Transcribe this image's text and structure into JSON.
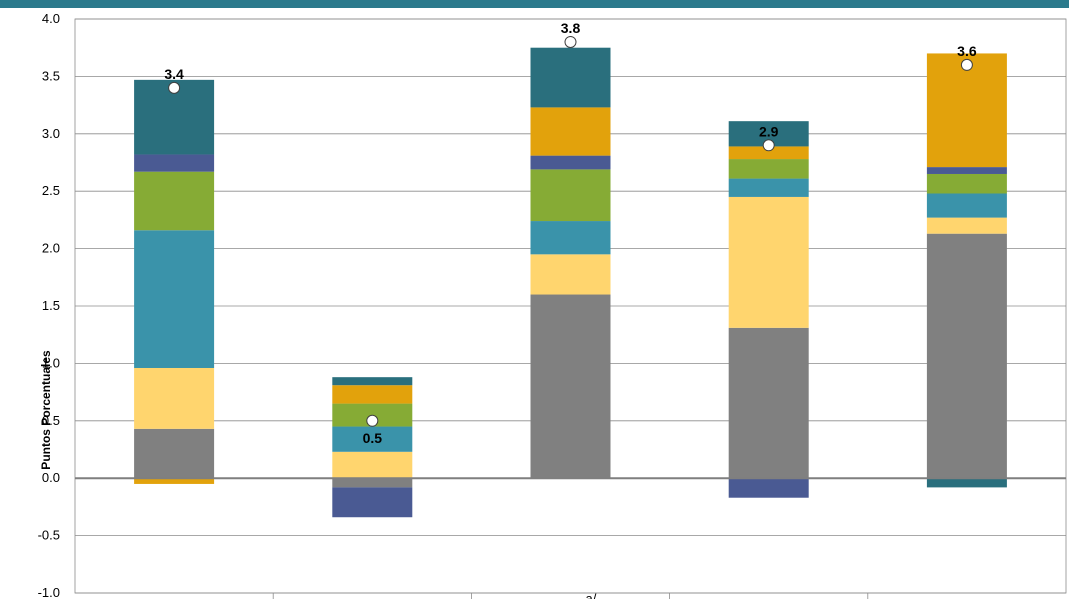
{
  "chart_data": {
    "type": "bar",
    "stacked": true,
    "ylabel": "Puntos Porcentuales",
    "ylim": [
      -1.0,
      4.0
    ],
    "yticks": [
      "-1.0",
      "-0.5",
      "0.0",
      "0.5",
      "1.0",
      "1.5",
      "2.0",
      "2.5",
      "3.0",
      "3.5",
      "4.0"
    ],
    "grid": true,
    "categories": [
      "",
      "",
      "",
      "",
      ""
    ],
    "category_axis_partial_text": "a/",
    "segment_colors": [
      "#808080",
      "#ffd56e",
      "#3a93aa",
      "#86ab35",
      "#4a5a93",
      "#e2a20c",
      "#2a6f7d"
    ],
    "series": [
      {
        "color": "#808080",
        "values": [
          0.43,
          -0.08,
          1.6,
          1.31,
          2.13
        ]
      },
      {
        "color": "#ffd56e",
        "values": [
          0.53,
          0.23,
          0.35,
          1.14,
          0.14
        ]
      },
      {
        "color": "#3a93aa",
        "values": [
          1.2,
          0.22,
          0.29,
          0.16,
          0.21
        ]
      },
      {
        "color": "#86ab35",
        "values": [
          0.51,
          0.2,
          0.45,
          0.17,
          0.17
        ]
      },
      {
        "color": "#4a5a93",
        "values": [
          0.15,
          -0.26,
          0.12,
          -0.17,
          0.06
        ]
      },
      {
        "color": "#e2a20c",
        "values": [
          -0.05,
          0.16,
          0.42,
          0.11,
          0.99
        ]
      },
      {
        "color": "#2a6f7d",
        "values": [
          0.65,
          0.07,
          0.52,
          0.22,
          -0.08
        ]
      }
    ],
    "totals": [
      3.4,
      0.5,
      3.8,
      2.9,
      3.6
    ],
    "total_labels": [
      "3.4",
      "0.5",
      "3.8",
      "2.9",
      "3.6"
    ],
    "total_label_position": [
      "above",
      "below",
      "above",
      "above",
      "above"
    ]
  }
}
